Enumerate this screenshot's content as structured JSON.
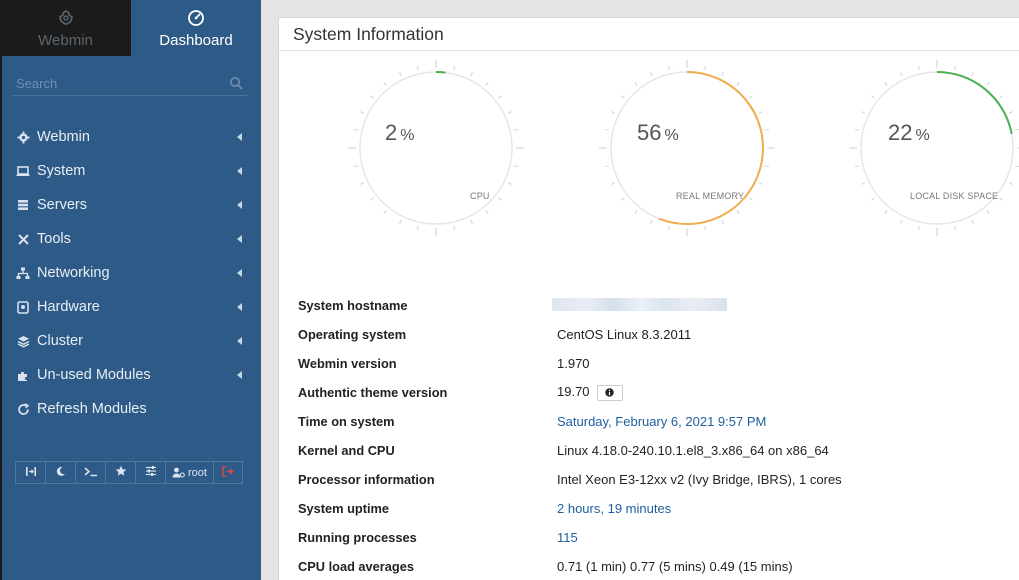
{
  "sidebar": {
    "tabs": [
      {
        "label": "Webmin",
        "icon": "webmin-logo-icon"
      },
      {
        "label": "Dashboard",
        "icon": "dashboard-gauge-icon"
      }
    ],
    "search_placeholder": "Search",
    "items": [
      {
        "label": "Webmin",
        "icon": "gear-icon"
      },
      {
        "label": "System",
        "icon": "laptop-icon"
      },
      {
        "label": "Servers",
        "icon": "server-icon"
      },
      {
        "label": "Tools",
        "icon": "tools-icon"
      },
      {
        "label": "Networking",
        "icon": "sitemap-icon"
      },
      {
        "label": "Hardware",
        "icon": "hard-drive-icon"
      },
      {
        "label": "Cluster",
        "icon": "layers-icon"
      },
      {
        "label": "Un-used Modules",
        "icon": "puzzle-icon"
      },
      {
        "label": "Refresh Modules",
        "icon": "refresh-icon"
      }
    ],
    "toolbar": {
      "user_label": "root"
    }
  },
  "main": {
    "title": "System Information",
    "gauges": [
      {
        "value": "2",
        "unit": "%",
        "label": "CPU",
        "percent": 2,
        "color": "#4caf50"
      },
      {
        "value": "56",
        "unit": "%",
        "label": "REAL MEMORY",
        "percent": 56,
        "color": "#f0ad4e"
      },
      {
        "value": "22",
        "unit": "%",
        "label": "LOCAL DISK SPACE",
        "percent": 22,
        "color": "#4caf50"
      }
    ],
    "info": [
      {
        "key": "System hostname",
        "value": ""
      },
      {
        "key": "Operating system",
        "value": "CentOS Linux 8.3.2011"
      },
      {
        "key": "Webmin version",
        "value": "1.970"
      },
      {
        "key": "Authentic theme version",
        "value": "19.70"
      },
      {
        "key": "Time on system",
        "value": "Saturday, February 6, 2021 9:57 PM"
      },
      {
        "key": "Kernel and CPU",
        "value": "Linux 4.18.0-240.10.1.el8_3.x86_64 on x86_64"
      },
      {
        "key": "Processor information",
        "value": "Intel Xeon E3-12xx v2 (Ivy Bridge, IBRS), 1 cores"
      },
      {
        "key": "System uptime",
        "value": "2 hours, 19 minutes"
      },
      {
        "key": "Running processes",
        "value": "115"
      },
      {
        "key": "CPU load averages",
        "value": "0.71 (1 min) 0.77 (5 mins) 0.49 (15 mins)"
      }
    ]
  }
}
